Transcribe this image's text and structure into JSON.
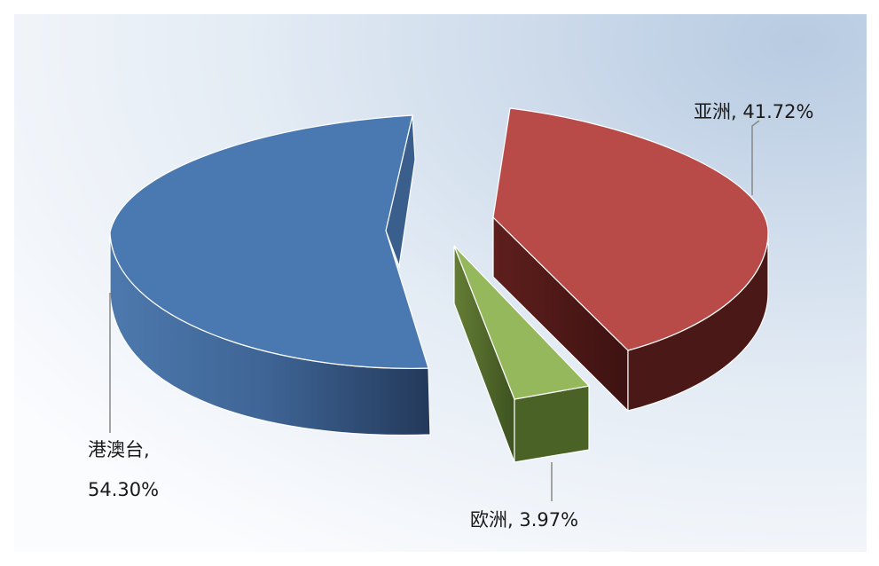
{
  "chart_data": {
    "type": "pie",
    "variant": "3d-exploded",
    "title": "",
    "slices": [
      {
        "name": "港澳台",
        "value": 54.3,
        "color": "#4a78b0",
        "label": [
          "港澳台,",
          "54.30%"
        ]
      },
      {
        "name": "亚洲",
        "value": 41.72,
        "color": "#b84b48",
        "label": [
          "亚洲, 41.72%"
        ]
      },
      {
        "name": "欧洲",
        "value": 3.97,
        "color": "#94b85b",
        "label": [
          "欧洲, 3.97%"
        ]
      }
    ],
    "background": "gradient-light-blue",
    "legend": "none",
    "data_labels": "outside-with-leader-lines"
  }
}
